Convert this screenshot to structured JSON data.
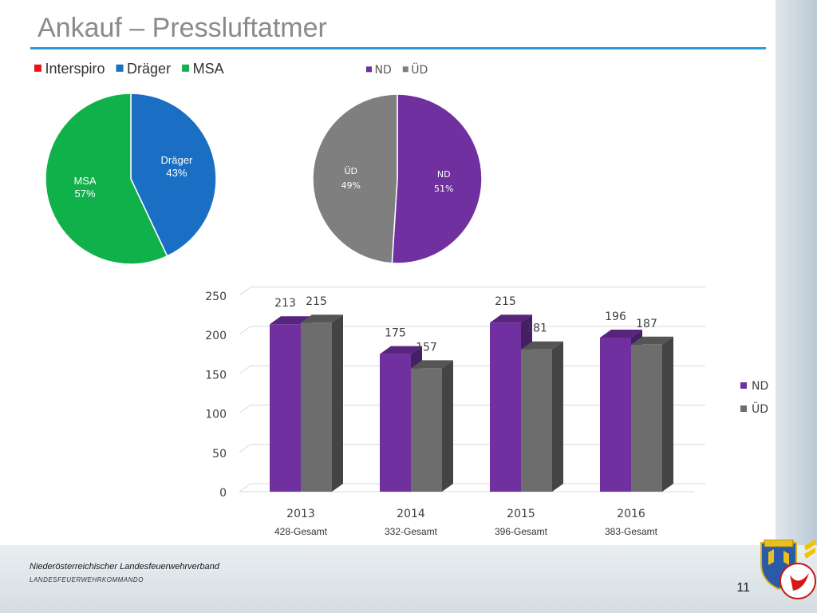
{
  "slide": {
    "title": "Ankauf – Pressluftatmer",
    "footer_org": "Niederösterreichischer Landesfeuerwehrverband",
    "footer_command": "Landesfeuerwehrkommando",
    "page_number": "11"
  },
  "colors": {
    "interspiro": "#e8141c",
    "drager": "#1a6fc4",
    "msa": "#10b04a",
    "nd": "#7030a0",
    "ud": "#7f7f7f",
    "title_rule": "#2e9ae0"
  },
  "chart_data": [
    {
      "type": "pie",
      "title": "",
      "legend_position": "top",
      "labels": [
        "Interspiro",
        "Dräger",
        "MSA"
      ],
      "values": [
        0,
        43,
        57
      ],
      "data_labels": [
        "",
        "Dräger\n43%",
        "MSA\n57%"
      ],
      "colors": [
        "#e8141c",
        "#1a6fc4",
        "#10b04a"
      ]
    },
    {
      "type": "pie",
      "title": "",
      "legend_position": "top",
      "labels": [
        "ND",
        "ÜD"
      ],
      "values": [
        51,
        49
      ],
      "data_labels": [
        "ND\n51%",
        "ÜD\n49%"
      ],
      "colors": [
        "#7030a0",
        "#7f7f7f"
      ]
    },
    {
      "type": "bar",
      "title": "",
      "legend_position": "right",
      "categories": [
        "2013",
        "2014",
        "2015",
        "2016"
      ],
      "category_sublabels": [
        "428-Gesamt",
        "332-Gesamt",
        "396-Gesamt",
        "383-Gesamt"
      ],
      "series": [
        {
          "name": "ND",
          "values": [
            213,
            175,
            215,
            196
          ],
          "color": "#7030a0"
        },
        {
          "name": "ÜD",
          "values": [
            215,
            157,
            181,
            187
          ],
          "color": "#6d6d6d"
        }
      ],
      "y_ticks": [
        0,
        50,
        100,
        150,
        200,
        250
      ],
      "ylim": [
        0,
        250
      ],
      "grid": true,
      "style": "3d-clustered"
    }
  ]
}
